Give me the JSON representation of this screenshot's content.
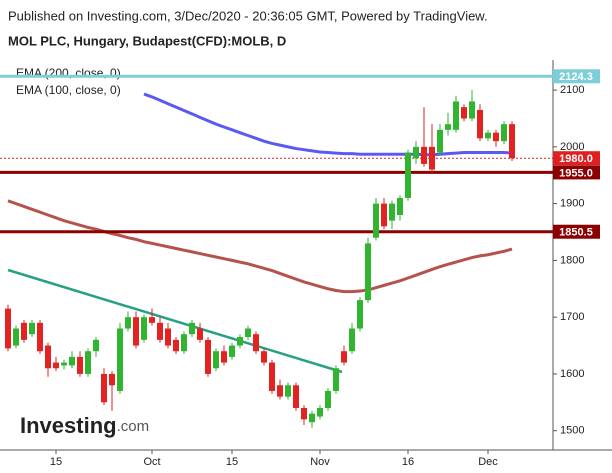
{
  "chart_data": {
    "type": "candlestick",
    "title": "Published on Investing.com, 3/Dec/2020 - 20:36:05 GMT, Powered by TradingView.",
    "subtitle": "MOL PLC, Hungary, Budapest(CFD):MOLB, D",
    "logo": "Investing",
    "logo_suffix": ".com",
    "categories": [
      null,
      null,
      null,
      null,
      null,
      null,
      "15",
      null,
      null,
      null,
      null,
      null,
      null,
      null,
      null,
      null,
      null,
      null,
      "Oct",
      null,
      null,
      null,
      null,
      null,
      null,
      null,
      null,
      null,
      "15",
      null,
      null,
      null,
      null,
      null,
      null,
      null,
      null,
      null,
      null,
      "Nov",
      null,
      null,
      null,
      null,
      null,
      null,
      null,
      null,
      null,
      null,
      "16",
      null,
      null,
      null,
      null,
      null,
      null,
      null,
      null,
      null,
      "Dec",
      null,
      null,
      null
    ],
    "open": [
      1715,
      1650,
      1690,
      1670,
      1690,
      1650,
      1620,
      1615,
      1615,
      1630,
      1600,
      1640,
      1600,
      1600,
      1570,
      1680,
      1700,
      1660,
      1700,
      1690,
      1680,
      1660,
      1640,
      1670,
      1680,
      1660,
      1610,
      1640,
      1630,
      1650,
      1665,
      1670,
      1640,
      1620,
      1580,
      1560,
      1580,
      1540,
      1515,
      1525,
      1540,
      1570,
      1640,
      1640,
      1680,
      1730,
      1840,
      1900,
      1870,
      1880,
      1910,
      1980,
      2000,
      2000,
      1990,
      2030,
      2030,
      2070,
      2050,
      2065,
      2015,
      2025,
      2010,
      2040
    ],
    "high": [
      1722,
      1685,
      1695,
      1695,
      1695,
      1655,
      1630,
      1625,
      1640,
      1640,
      1645,
      1665,
      1610,
      1605,
      1690,
      1710,
      1710,
      1705,
      1715,
      1700,
      1690,
      1665,
      1675,
      1695,
      1690,
      1665,
      1645,
      1650,
      1655,
      1670,
      1685,
      1675,
      1645,
      1625,
      1590,
      1585,
      1585,
      1545,
      1535,
      1545,
      1575,
      1615,
      1650,
      1690,
      1735,
      1840,
      1910,
      1910,
      1905,
      1915,
      1995,
      2010,
      2070,
      2040,
      2040,
      2060,
      2090,
      2075,
      2100,
      2075,
      2030,
      2030,
      2045,
      2045
    ],
    "low": [
      1640,
      1645,
      1655,
      1665,
      1635,
      1595,
      1605,
      1608,
      1610,
      1595,
      1595,
      1630,
      1545,
      1535,
      1565,
      1675,
      1645,
      1655,
      1685,
      1655,
      1645,
      1635,
      1635,
      1665,
      1655,
      1595,
      1605,
      1615,
      1625,
      1645,
      1660,
      1635,
      1615,
      1565,
      1555,
      1555,
      1535,
      1510,
      1505,
      1520,
      1535,
      1565,
      1615,
      1635,
      1675,
      1725,
      1835,
      1855,
      1855,
      1870,
      1905,
      1970,
      1965,
      1955,
      1985,
      2020,
      2025,
      2045,
      2045,
      2010,
      2010,
      2000,
      2005,
      1975
    ],
    "close": [
      1645,
      1680,
      1660,
      1690,
      1640,
      1610,
      1610,
      1620,
      1630,
      1600,
      1640,
      1660,
      1550,
      1580,
      1680,
      1700,
      1650,
      1700,
      1690,
      1660,
      1650,
      1640,
      1670,
      1690,
      1660,
      1600,
      1640,
      1620,
      1650,
      1665,
      1680,
      1640,
      1620,
      1570,
      1560,
      1580,
      1540,
      1520,
      1530,
      1540,
      1570,
      1610,
      1620,
      1680,
      1730,
      1830,
      1900,
      1860,
      1900,
      1910,
      1990,
      2000,
      1970,
      1960,
      2030,
      2040,
      2080,
      2050,
      2080,
      2015,
      2025,
      2010,
      2040,
      1980
    ],
    "up_color": "#2fb52f",
    "down_color": "#e32222",
    "series": [
      {
        "name": "EMA (200, close, 0)",
        "color": "#5a5af2",
        "values": [
          null,
          null,
          null,
          null,
          null,
          null,
          null,
          null,
          null,
          null,
          null,
          null,
          null,
          null,
          null,
          null,
          null,
          2093,
          2088,
          2082,
          2076,
          2070,
          2064,
          2058,
          2052,
          2046,
          2040,
          2035,
          2030,
          2025,
          2020,
          2015,
          2010,
          2006,
          2003,
          2000,
          1997,
          1995,
          1993,
          1991,
          1990,
          1989,
          1988,
          1988,
          1987,
          1987,
          1987,
          1987,
          1987,
          1987,
          1987,
          1987,
          1986,
          1986,
          1987,
          1988,
          1989,
          1990,
          1990,
          1990,
          1990,
          1990,
          1990,
          1989
        ]
      },
      {
        "name": "EMA (100, close, 0)",
        "color": "#b5524c",
        "values": [
          1905,
          1900,
          1895,
          1890,
          1885,
          1880,
          1875,
          1870,
          1866,
          1862,
          1858,
          1855,
          1851,
          1847,
          1844,
          1840,
          1837,
          1833,
          1830,
          1827,
          1824,
          1821,
          1818,
          1815,
          1812,
          1809,
          1806,
          1803,
          1800,
          1797,
          1794,
          1790,
          1786,
          1782,
          1777,
          1772,
          1767,
          1762,
          1758,
          1754,
          1750,
          1747,
          1745,
          1745,
          1746,
          1748,
          1752,
          1756,
          1760,
          1764,
          1769,
          1774,
          1779,
          1784,
          1789,
          1793,
          1797,
          1801,
          1805,
          1808,
          1810,
          1813,
          1816,
          1820
        ]
      }
    ],
    "levels": [
      {
        "value": 2124.3,
        "color": "#7ccfd6",
        "label_color": "#7ccfd6",
        "style": "solid"
      },
      {
        "value": 1980,
        "label": "1980.0",
        "color": "#e02020",
        "label_color": "#e02020",
        "style": "dotted"
      },
      {
        "value": 1955,
        "label": "1955.0",
        "color": "#8b0000",
        "label_color": "#8b0000",
        "style": "solid"
      },
      {
        "value": 1850.5,
        "label": "1850.5",
        "color": "#8b0000",
        "label_color": "#8b0000",
        "style": "solid"
      }
    ],
    "ylim": [
      1466,
      2153
    ],
    "yticks": [
      1500,
      1600,
      1700,
      1800,
      1900,
      2000,
      2100
    ]
  }
}
